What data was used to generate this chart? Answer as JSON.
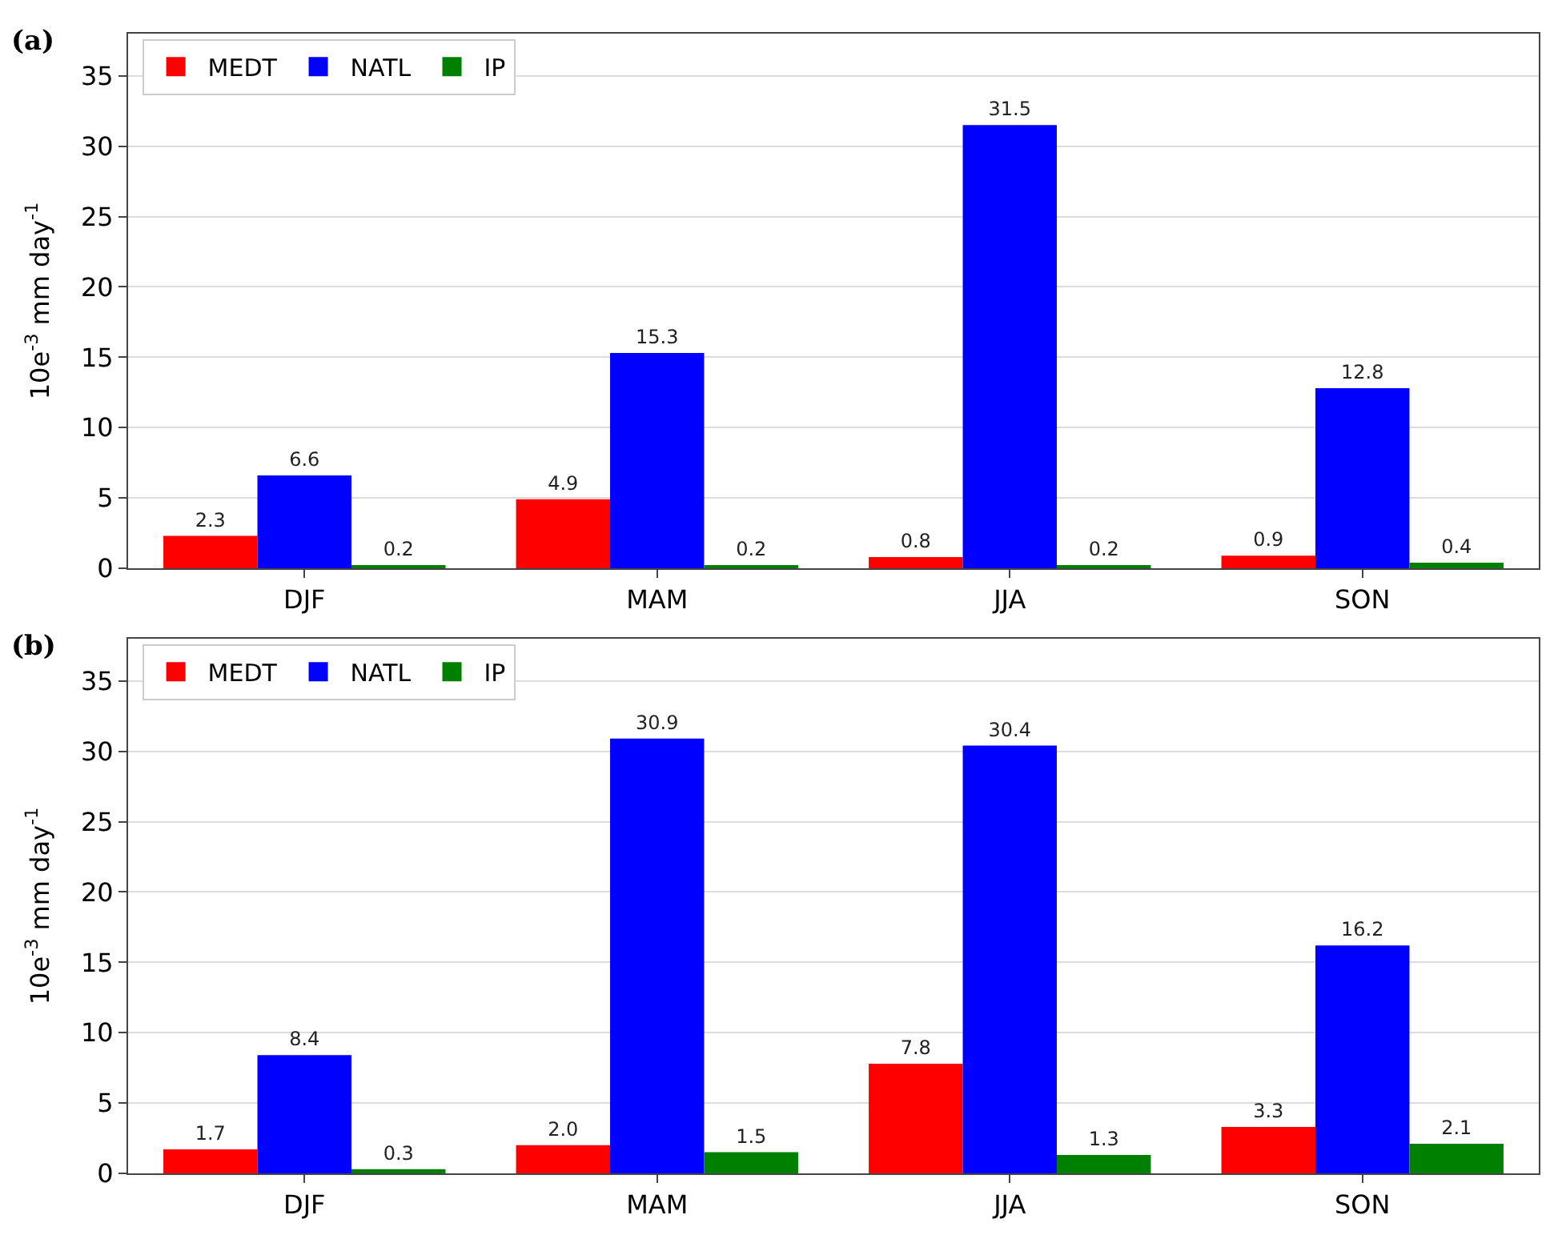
{
  "chart_data": [
    {
      "type": "bar",
      "annotations": [
        "(a)"
      ],
      "ylabel": "10e$^{-3}$ mm day$^{-1}$",
      "categories": [
        "DJF",
        "MAM",
        "JJA",
        "SON"
      ],
      "ylim": [
        0,
        38
      ],
      "yticks": [
        0,
        5,
        10,
        15,
        20,
        25,
        30,
        35
      ],
      "grid": "y",
      "legend": "top left",
      "series": [
        {
          "name": "MEDT",
          "color": "#ff0000",
          "values": [
            2.3,
            4.9,
            0.8,
            0.9
          ],
          "value_labels": [
            "2.3",
            "4.9",
            "0.8",
            "0.9"
          ]
        },
        {
          "name": "NATL",
          "color": "#0000ff",
          "values": [
            6.6,
            15.3,
            31.5,
            12.8
          ],
          "value_labels": [
            "6.6",
            "15.3",
            "31.5",
            "12.8"
          ]
        },
        {
          "name": "IP",
          "color": "#008000",
          "values": [
            0.2,
            0.2,
            0.2,
            0.4
          ],
          "value_labels": [
            "0.2",
            "0.2",
            "0.2",
            "0.4"
          ]
        }
      ]
    },
    {
      "type": "bar",
      "annotations": [
        "(b)"
      ],
      "ylabel": "10e$^{-3}$ mm day$^{-1}$",
      "categories": [
        "DJF",
        "MAM",
        "JJA",
        "SON"
      ],
      "ylim": [
        0,
        38
      ],
      "yticks": [
        0,
        5,
        10,
        15,
        20,
        25,
        30,
        35
      ],
      "grid": "y",
      "legend": "top left",
      "series": [
        {
          "name": "MEDT",
          "color": "#ff0000",
          "values": [
            1.7,
            2.0,
            7.8,
            3.3
          ],
          "value_labels": [
            "1.7",
            "2.0",
            "7.8",
            "3.3"
          ]
        },
        {
          "name": "NATL",
          "color": "#0000ff",
          "values": [
            8.4,
            30.9,
            30.4,
            16.2
          ],
          "value_labels": [
            "8.4",
            "30.9",
            "30.4",
            "16.2"
          ]
        },
        {
          "name": "IP",
          "color": "#008000",
          "values": [
            0.3,
            1.5,
            1.3,
            2.1
          ],
          "value_labels": [
            "0.3",
            "1.5",
            "1.3",
            "2.1"
          ]
        }
      ]
    }
  ]
}
